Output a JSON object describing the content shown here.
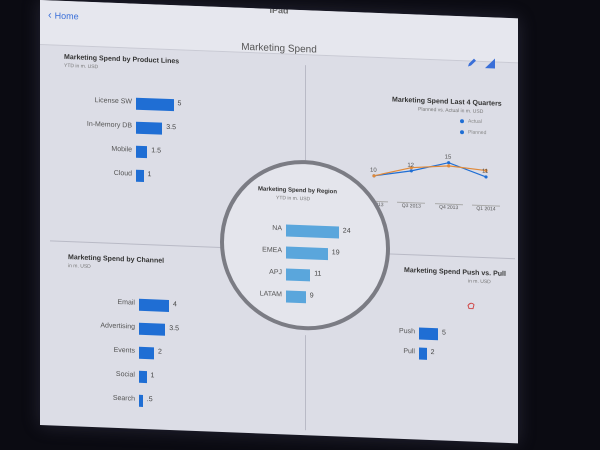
{
  "device": {
    "title": "iPad"
  },
  "nav": {
    "back_label": "Home"
  },
  "page": {
    "title": "Marketing Spend"
  },
  "icons": {
    "edit": "pencil-icon",
    "settings": "settings-icon",
    "back": "chevron-left-icon"
  },
  "colors": {
    "accent": "#1f6ed4",
    "region_bar": "#5aa6dc",
    "line_actual": "#1f6ed4",
    "line_planned": "#e08a3a",
    "screen_bg": "#dcdde6"
  },
  "panels": {
    "product_lines": {
      "title": "Marketing Spend by Product Lines",
      "subtitle": "YTD in m. USD",
      "items": [
        {
          "label": "License SW",
          "value": "5"
        },
        {
          "label": "In-Memory DB",
          "value": "3.5"
        },
        {
          "label": "Mobile",
          "value": "1.5"
        },
        {
          "label": "Cloud",
          "value": "1"
        }
      ]
    },
    "quarters": {
      "title": "Marketing Spend Last 4 Quarters",
      "subtitle": "Planned vs. Actual in m. USD",
      "legend": [
        "Actual",
        "Planned"
      ],
      "quarter_labels": [
        "Q2 2013",
        "Q3 2013",
        "Q4 2013",
        "Q1 2014"
      ],
      "point_labels": [
        "10",
        "12",
        "15",
        "11"
      ]
    },
    "region": {
      "title": "Marketing Spend by Region",
      "subtitle": "YTD in m. USD",
      "items": [
        {
          "label": "NA",
          "value": "24"
        },
        {
          "label": "EMEA",
          "value": "19"
        },
        {
          "label": "APJ",
          "value": "11"
        },
        {
          "label": "LATAM",
          "value": "9"
        }
      ]
    },
    "channel": {
      "title": "Marketing Spend by Channel",
      "subtitle": "in m. USD",
      "items": [
        {
          "label": "Email",
          "value": "4"
        },
        {
          "label": "Advertising",
          "value": "3.5"
        },
        {
          "label": "Events",
          "value": "2"
        },
        {
          "label": "Social",
          "value": "1"
        },
        {
          "label": "Search",
          "value": ".5"
        }
      ]
    },
    "push_pull": {
      "title": "Marketing Spend Push vs. Pull",
      "subtitle": "in m. USD",
      "items": [
        {
          "label": "Push",
          "value": "5"
        },
        {
          "label": "Pull",
          "value": "2"
        }
      ]
    }
  },
  "chart_data": [
    {
      "type": "bar",
      "title": "Marketing Spend by Product Lines",
      "subtitle": "YTD in m. USD",
      "categories": [
        "License SW",
        "In-Memory DB",
        "Mobile",
        "Cloud"
      ],
      "values": [
        5,
        3.5,
        1.5,
        1
      ]
    },
    {
      "type": "line",
      "title": "Marketing Spend Last 4 Quarters",
      "subtitle": "Planned vs. Actual in m. USD",
      "categories": [
        "Q2 2013",
        "Q3 2013",
        "Q4 2013",
        "Q1 2014"
      ],
      "series": [
        {
          "name": "Actual",
          "values": [
            10,
            12,
            15,
            11
          ]
        },
        {
          "name": "Planned",
          "values": [
            10,
            13,
            14,
            13
          ]
        }
      ],
      "ylim": [
        5,
        20
      ],
      "legend": "top-right"
    },
    {
      "type": "bar",
      "title": "Marketing Spend by Region",
      "subtitle": "YTD in m. USD",
      "categories": [
        "NA",
        "EMEA",
        "APJ",
        "LATAM"
      ],
      "values": [
        24,
        19,
        11,
        9
      ]
    },
    {
      "type": "bar",
      "title": "Marketing Spend by Channel",
      "subtitle": "in m. USD",
      "categories": [
        "Email",
        "Advertising",
        "Events",
        "Social",
        "Search"
      ],
      "values": [
        4,
        3.5,
        2,
        1,
        0.5
      ]
    },
    {
      "type": "bar",
      "title": "Marketing Spend Push vs. Pull",
      "subtitle": "in m. USD",
      "categories": [
        "Push",
        "Pull"
      ],
      "values": [
        5,
        2
      ]
    }
  ]
}
